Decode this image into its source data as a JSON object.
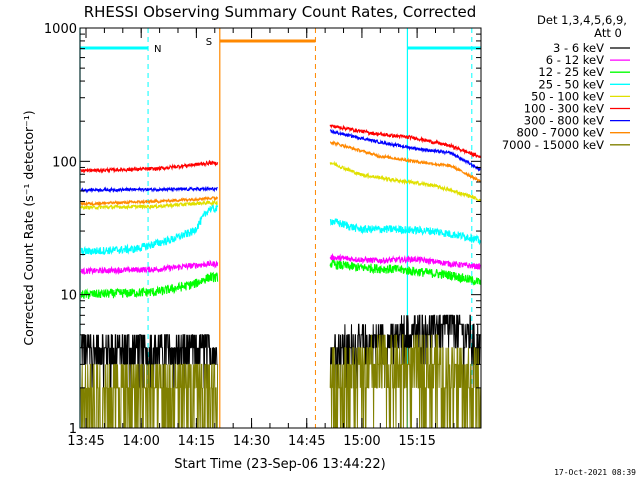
{
  "chart_data": {
    "type": "line",
    "title": "RHESSI Observing Summary Count Rates, Corrected",
    "xlabel": "Start Time (23-Sep-06 13:44:22)",
    "ylabel": "Corrected Count Rate (s⁻¹ detector⁻¹)",
    "yscale": "log",
    "ylim": [
      1,
      1000
    ],
    "xlim_minutes": [
      -1,
      108
    ],
    "x_tick_labels": [
      "13:45",
      "14:00",
      "14:15",
      "14:30",
      "14:45",
      "15:00",
      "15:15"
    ],
    "y_tick_labels": [
      "1",
      "10",
      "100",
      "1000"
    ],
    "grid": false,
    "legend_placement": "right",
    "legend_header": [
      "Det 1,3,4,5,6,9,",
      "Att 0"
    ],
    "footer_date": "17-Oct-2021 08:39",
    "gap_minutes": [
      37,
      67
    ],
    "series": [
      {
        "name": "3 - 6 keV",
        "color": "#000000",
        "jitter": 0.12,
        "quantized": true,
        "values_pre": [
          [
            -1,
            4
          ],
          [
            34,
            4
          ]
        ],
        "values_post": [
          [
            67,
            4
          ],
          [
            80,
            4.5
          ],
          [
            87,
            5
          ],
          [
            95,
            6
          ],
          [
            100,
            6
          ],
          [
            105,
            5
          ],
          [
            110,
            4
          ]
        ]
      },
      {
        "name": "6 - 12 keV",
        "color": "#ff00ff",
        "jitter": 0.05,
        "values_pre": [
          [
            -1,
            15
          ],
          [
            20,
            15.5
          ],
          [
            34,
            17
          ]
        ],
        "values_post": [
          [
            67,
            19
          ],
          [
            80,
            18
          ],
          [
            90,
            18.5
          ],
          [
            100,
            17
          ],
          [
            110,
            16
          ]
        ]
      },
      {
        "name": "12 - 25 keV",
        "color": "#00ff00",
        "jitter": 0.08,
        "values_pre": [
          [
            -1,
            10
          ],
          [
            20,
            10.5
          ],
          [
            30,
            12
          ],
          [
            34,
            13.5
          ]
        ],
        "values_post": [
          [
            67,
            17
          ],
          [
            75,
            16
          ],
          [
            85,
            15.5
          ],
          [
            100,
            14
          ],
          [
            110,
            12
          ]
        ]
      },
      {
        "name": "25 - 50 keV",
        "color": "#00ffff",
        "jitter": 0.07,
        "values_pre": [
          [
            -1,
            21
          ],
          [
            14,
            22
          ],
          [
            24,
            26
          ],
          [
            30,
            30
          ],
          [
            34,
            44
          ]
        ],
        "values_post": [
          [
            67,
            36
          ],
          [
            75,
            31
          ],
          [
            85,
            31
          ],
          [
            95,
            30
          ],
          [
            105,
            27
          ],
          [
            110,
            24
          ]
        ]
      },
      {
        "name": "50 - 100 keV",
        "color": "#e0e000",
        "jitter": 0.03,
        "values_pre": [
          [
            -1,
            45
          ],
          [
            20,
            46
          ],
          [
            34,
            49
          ]
        ],
        "values_post": [
          [
            67,
            98
          ],
          [
            75,
            80
          ],
          [
            85,
            72
          ],
          [
            95,
            66
          ],
          [
            105,
            55
          ],
          [
            110,
            48
          ]
        ]
      },
      {
        "name": "100 - 300 keV",
        "color": "#ff0000",
        "jitter": 0.03,
        "values_pre": [
          [
            -1,
            85
          ],
          [
            20,
            88
          ],
          [
            34,
            97
          ]
        ],
        "values_post": [
          [
            67,
            185
          ],
          [
            80,
            160
          ],
          [
            90,
            150
          ],
          [
            100,
            130
          ],
          [
            110,
            102
          ]
        ]
      },
      {
        "name": "300 - 800 keV",
        "color": "#0000ff",
        "jitter": 0.025,
        "values_pre": [
          [
            -1,
            61
          ],
          [
            34,
            62
          ]
        ],
        "values_post": [
          [
            67,
            168
          ],
          [
            80,
            140
          ],
          [
            90,
            125
          ],
          [
            100,
            115
          ],
          [
            110,
            80
          ]
        ]
      },
      {
        "name": "800 - 7000 keV",
        "color": "#ff8800",
        "jitter": 0.025,
        "values_pre": [
          [
            -1,
            48
          ],
          [
            20,
            50
          ],
          [
            34,
            53
          ]
        ],
        "values_post": [
          [
            67,
            140
          ],
          [
            80,
            110
          ],
          [
            90,
            100
          ],
          [
            100,
            92
          ],
          [
            110,
            66
          ]
        ]
      },
      {
        "name": "7000 - 15000 keV",
        "color": "#808000",
        "jitter": 0.22,
        "quantized": true,
        "values_pre": [
          [
            -1,
            2
          ],
          [
            34,
            2
          ]
        ],
        "values_post": [
          [
            67,
            2.5
          ],
          [
            85,
            3
          ],
          [
            95,
            3
          ],
          [
            105,
            2.5
          ],
          [
            110,
            2
          ]
        ]
      }
    ],
    "annotations": {
      "night": {
        "label": "N",
        "color": "#00ffff",
        "bars_minutes": [
          [
            -1,
            17.5
          ],
          [
            88,
            108
          ]
        ],
        "night_start_lines": [
          17.5,
          105.5
        ],
        "night_end_lines": [
          -1,
          88
        ]
      },
      "saa": {
        "label": "S",
        "color": "#ff8800",
        "bar_minutes": [
          37,
          63
        ],
        "saa_start_line": 37,
        "saa_end_line": 63
      }
    }
  }
}
